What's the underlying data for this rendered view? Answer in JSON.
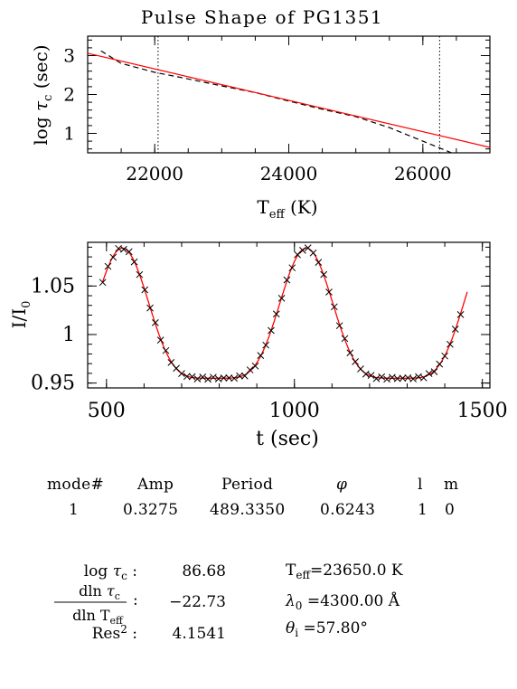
{
  "title": "Pulse Shape of PG1351",
  "chart_data": [
    {
      "type": "line",
      "ylabel": "log τc (sec)",
      "xlabel": "Teff (K)",
      "xlim": [
        21000,
        27000
      ],
      "ylim": [
        0.5,
        3.5
      ],
      "x_ticks": [
        22000,
        24000,
        26000
      ],
      "y_ticks": [
        1,
        2,
        3
      ],
      "vertical_markers": [
        22050,
        26250
      ],
      "series": [
        {
          "style": "dashed",
          "color": "#000000",
          "x": [
            21200,
            21500,
            22000,
            22500,
            23000,
            23500,
            24000,
            24500,
            25000,
            25500,
            26000,
            26500
          ],
          "y": [
            3.12,
            2.8,
            2.57,
            2.4,
            2.22,
            2.05,
            1.83,
            1.62,
            1.43,
            1.15,
            0.8,
            0.45
          ]
        },
        {
          "style": "solid",
          "color": "#ff0000",
          "x": [
            21000,
            27000
          ],
          "y": [
            3.06,
            0.64
          ]
        }
      ]
    },
    {
      "type": "line",
      "ylabel": "I/I0",
      "xlabel": "t (sec)",
      "xlim": [
        450,
        1520
      ],
      "ylim": [
        0.945,
        1.095
      ],
      "x_ticks": [
        500,
        1000,
        1500
      ],
      "y_ticks": [
        0.95,
        1,
        1.05
      ],
      "y_tick_labels": [
        "0.95",
        "1",
        "1.05"
      ],
      "model_params": {
        "period": 489.335,
        "min_center": 787,
        "amplitude": 0.134,
        "baseline": 0.955,
        "exponent": 2.6
      },
      "series": [
        {
          "style": "solid",
          "color": "#ff0000",
          "x_range": [
            490,
            1460
          ]
        },
        {
          "style": "markers",
          "marker": "x",
          "color": "#000000",
          "x_range": [
            490,
            1455
          ],
          "step": 14
        }
      ]
    }
  ],
  "params_table": {
    "headers": [
      "mode#",
      "Amp",
      "Period",
      "φ",
      "l",
      "m"
    ],
    "row": [
      "1",
      "0.3275",
      "489.3350",
      "0.6243",
      "1",
      "0"
    ]
  },
  "fit_results": {
    "log_tau": {
      "label": "log τc :",
      "value": "86.68"
    },
    "dln": {
      "num": "dln τc",
      "den": "dln Teff",
      "colon": ":",
      "value": "−22.73"
    },
    "res": {
      "label": "Res² :",
      "value": "4.1541"
    },
    "teff": {
      "text": "=23650.0 K"
    },
    "lambda0": {
      "text": "=4300.00 Å"
    },
    "theta": {
      "text": "=57.80°"
    }
  }
}
